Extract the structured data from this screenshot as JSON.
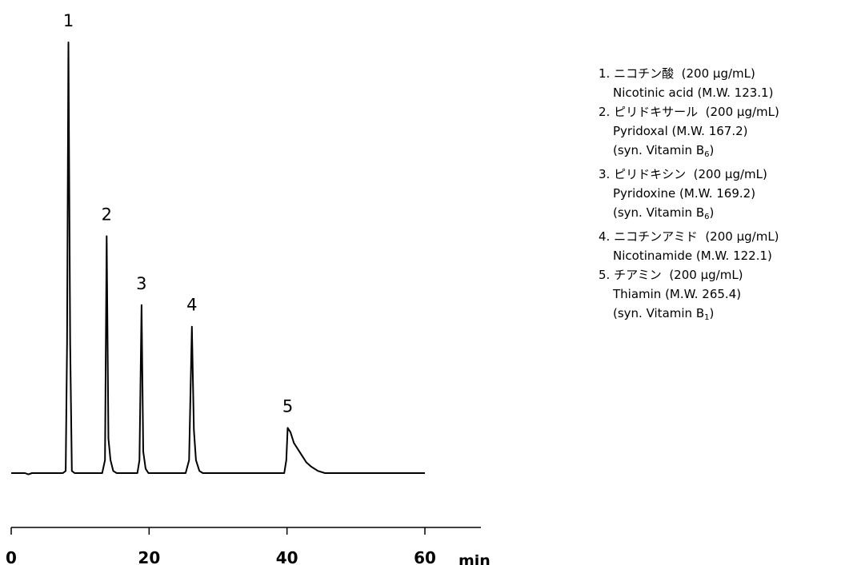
{
  "chart_data": {
    "type": "line",
    "title": "",
    "xlabel": "",
    "ylabel": "",
    "x_unit": "min",
    "xlim": [
      0,
      60
    ],
    "x_ticks": [
      0,
      20,
      40,
      60
    ],
    "grid": false,
    "series": [
      {
        "x": [
          0,
          2.0,
          2.5,
          3.0,
          7.5,
          7.9,
          8.1,
          8.3,
          8.55,
          8.8,
          9.2,
          13.2,
          13.6,
          13.85,
          14.1,
          14.4,
          14.8,
          15.3,
          18.3,
          18.6,
          18.9,
          19.15,
          19.5,
          19.9,
          25.3,
          25.8,
          26.2,
          26.5,
          26.8,
          27.3,
          27.8,
          39.6,
          39.9,
          40.1,
          40.5,
          41.0,
          41.6,
          42.2,
          42.8,
          43.5,
          44.5,
          45.5,
          60
        ],
        "y": [
          0,
          0,
          -0.3,
          0,
          0,
          0.5,
          30,
          100,
          30,
          0.5,
          0,
          0,
          3,
          55,
          8,
          3,
          0.5,
          0,
          0,
          3,
          39,
          5,
          1,
          0,
          0,
          3,
          34,
          10,
          3,
          0.5,
          0,
          0,
          3,
          10.5,
          9.5,
          7,
          5.5,
          4,
          2.5,
          1.5,
          0.5,
          0,
          0
        ]
      }
    ],
    "peaks": [
      {
        "label": "1",
        "time": 8.3
      },
      {
        "label": "2",
        "time": 13.85
      },
      {
        "label": "3",
        "time": 18.9
      },
      {
        "label": "4",
        "time": 26.2
      },
      {
        "label": "5",
        "time": 40.1
      }
    ]
  },
  "legend": [
    {
      "index": "1.",
      "jp": "ニコチン酸",
      "conc": "(200 μg/mL)",
      "name": "Nicotinic acid (M.W. 123.1)",
      "syn_prefix": "",
      "syn_sub": ""
    },
    {
      "index": "2.",
      "jp": "ピリドキサール",
      "conc": "(200 μg/mL)",
      "name": "Pyridoxal (M.W. 167.2)",
      "syn_prefix": "(syn. Vitamin B",
      "syn_sub": "6",
      "syn_suffix": ")"
    },
    {
      "index": "3.",
      "jp": "ピリドキシン",
      "conc": "(200 μg/mL)",
      "name": "Pyridoxine (M.W. 169.2)",
      "syn_prefix": "(syn. Vitamin B",
      "syn_sub": "6",
      "syn_suffix": ")"
    },
    {
      "index": "4.",
      "jp": "ニコチンアミド",
      "conc": "(200 μg/mL)",
      "name": "Nicotinamide (M.W. 122.1)",
      "syn_prefix": "",
      "syn_sub": ""
    },
    {
      "index": "5.",
      "jp": "チアミン",
      "conc": "(200 μg/mL)",
      "name": "Thiamin (M.W. 265.4)",
      "syn_prefix": "(syn. Vitamin B",
      "syn_sub": "1",
      "syn_suffix": ")"
    }
  ]
}
